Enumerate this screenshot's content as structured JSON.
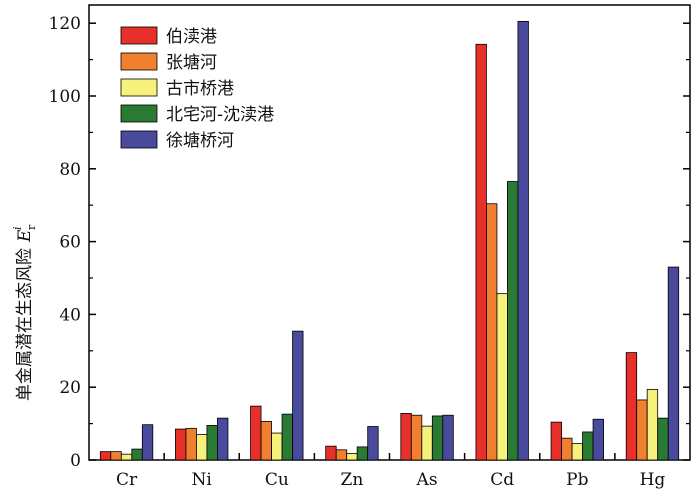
{
  "chart_data": {
    "type": "bar",
    "categories": [
      "Cr",
      "Ni",
      "Cu",
      "Zn",
      "As",
      "Cd",
      "Pb",
      "Hg"
    ],
    "series": [
      {
        "name": "伯渎港",
        "color": "#e8302a",
        "values": [
          2.3,
          8.5,
          14.8,
          3.8,
          12.8,
          114.2,
          10.4,
          29.5
        ]
      },
      {
        "name": "张塘河",
        "color": "#f08030",
        "values": [
          2.3,
          8.7,
          10.6,
          2.8,
          12.3,
          70.4,
          6.0,
          16.5
        ]
      },
      {
        "name": "古市桥港",
        "color": "#f6f07c",
        "values": [
          1.6,
          7.0,
          7.4,
          1.8,
          9.3,
          45.7,
          4.5,
          19.4
        ]
      },
      {
        "name": "北宅河-沈渎港",
        "color": "#2a7a33",
        "values": [
          3.0,
          9.5,
          12.6,
          3.6,
          12.1,
          76.5,
          7.7,
          11.5
        ]
      },
      {
        "name": "徐塘桥河",
        "color": "#4a4a9c",
        "values": [
          9.7,
          11.5,
          35.4,
          9.2,
          12.3,
          120.5,
          11.2,
          53.0
        ]
      }
    ],
    "ylabel": "单金属潜在生态风险",
    "ylabel_symbol": "E",
    "ylabel_sub": "r",
    "ylabel_sup": "i",
    "ylim": [
      0,
      125
    ],
    "yticks": [
      0,
      20,
      40,
      60,
      80,
      100,
      120
    ],
    "legend_position": "top-left",
    "grid": false
  }
}
